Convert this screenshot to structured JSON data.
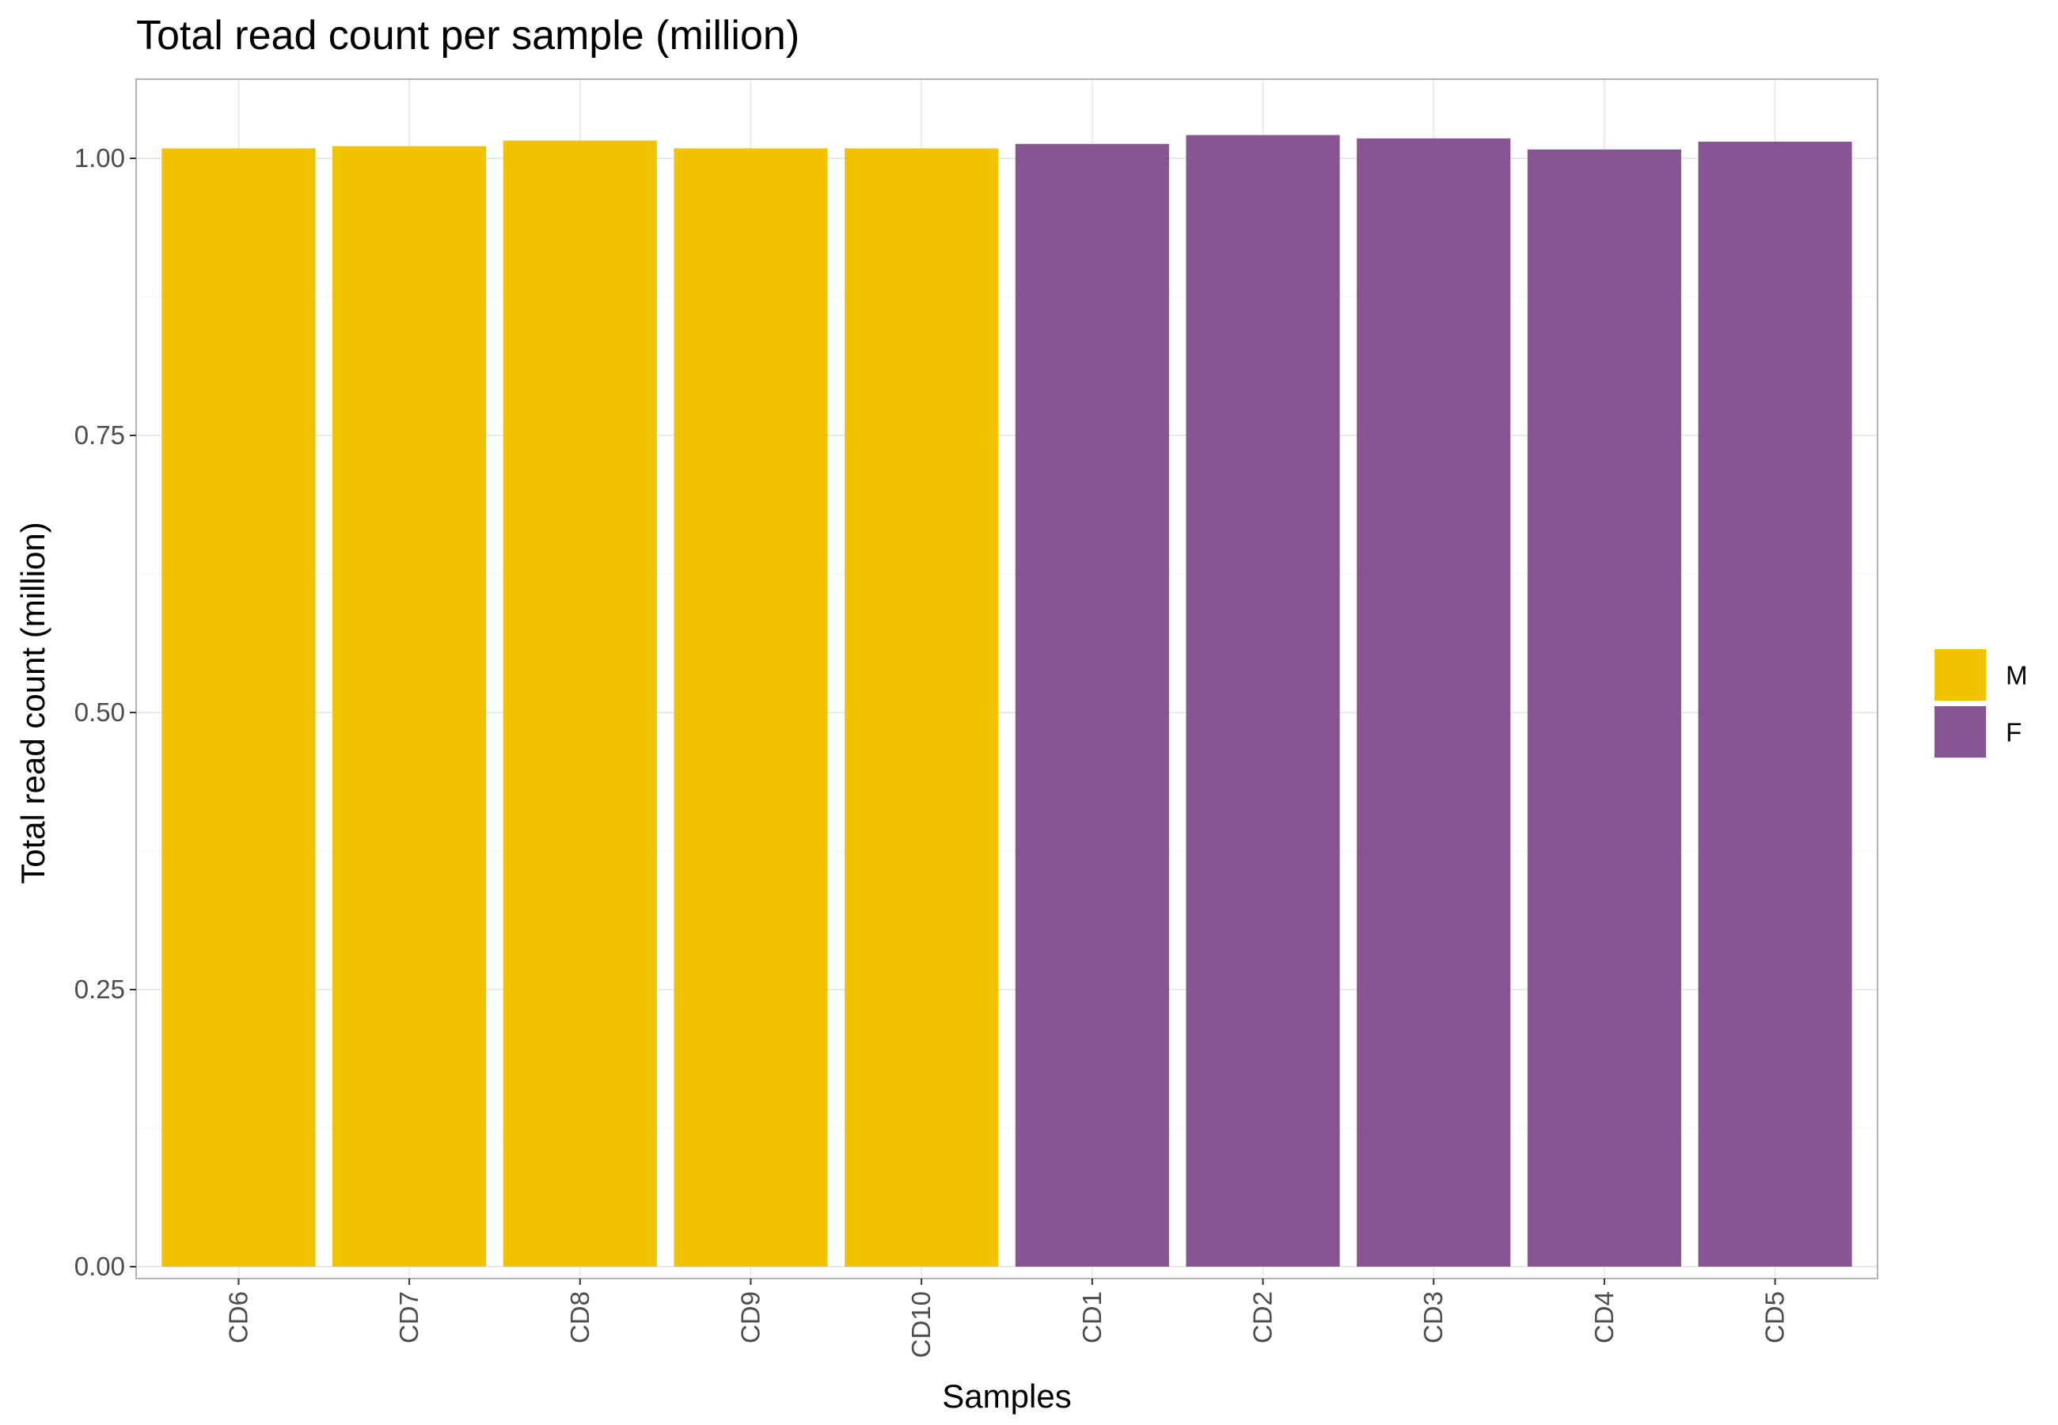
{
  "chart_data": {
    "type": "bar",
    "title": "Total read count per sample (million)",
    "xlabel": "Samples",
    "ylabel": "Total read count (million)",
    "categories": [
      "CD6",
      "CD7",
      "CD8",
      "CD9",
      "CD10",
      "CD1",
      "CD2",
      "CD3",
      "CD4",
      "CD5"
    ],
    "values": [
      1.009,
      1.011,
      1.016,
      1.009,
      1.009,
      1.013,
      1.021,
      1.018,
      1.008,
      1.015
    ],
    "groups": [
      "M",
      "M",
      "M",
      "M",
      "M",
      "F",
      "F",
      "F",
      "F",
      "F"
    ],
    "ylim": [
      0,
      1.06
    ],
    "yticks": [
      0,
      0.25,
      0.5,
      0.75,
      1.0
    ],
    "ytick_labels": [
      "0.00",
      "0.25",
      "0.50",
      "0.75",
      "1.00"
    ],
    "grid": true,
    "legend": {
      "position": "right",
      "entries": [
        {
          "label": "M",
          "color": "#F2C200"
        },
        {
          "label": "F",
          "color": "#875692"
        }
      ]
    },
    "colors": {
      "M": "#F2C200",
      "F": "#875692",
      "grid_major": "#EBEBEB",
      "grid_minor": "#F5F5F5",
      "panel_border": "#B3B3B3"
    }
  }
}
